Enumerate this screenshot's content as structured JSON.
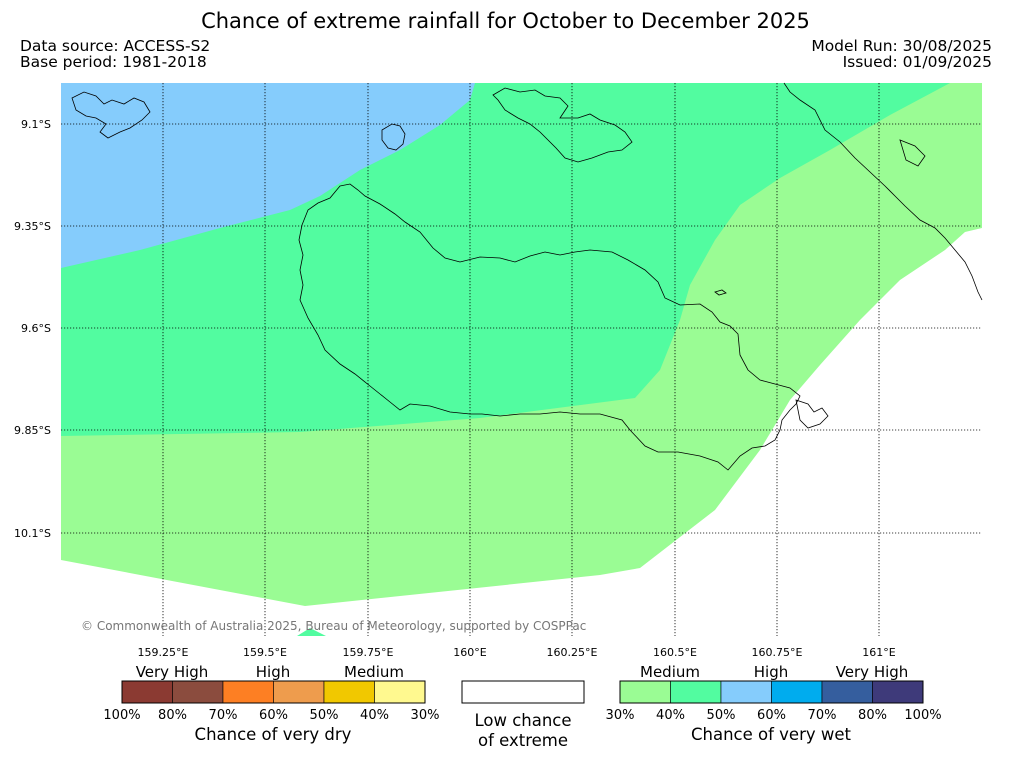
{
  "title": "Chance of extreme rainfall for October to December 2025",
  "header": {
    "data_source": "Data source: ACCESS-S2",
    "base_period": "Base period: 1981-2018",
    "model_run": "Model Run: 30/08/2025",
    "issued": "Issued: 01/09/2025"
  },
  "map": {
    "latitude_labels": [
      "9.1°S",
      "9.35°S",
      "9.6°S",
      "9.85°S",
      "10.1°S"
    ],
    "longitude_labels": [
      "159.25°E",
      "159.5°E",
      "159.75°E",
      "160°E",
      "160.25°E",
      "160.5°E",
      "160.75°E",
      "161°E"
    ],
    "copyright": "© Commonwealth of Australia 2025, Bureau of Meteorology, supported by COSPPac",
    "region_colors": {
      "wet_medium": "#9afc94",
      "wet_40_50": "#52fca0",
      "wet_high": "#85ccfc",
      "low": "#ffffff"
    }
  },
  "legend_dry": {
    "headings": [
      "Very High",
      "High",
      "Medium"
    ],
    "colors": [
      "#8b3a32",
      "#8b4c3e",
      "#fd7f23",
      "#ee9c4d",
      "#f1c800",
      "#fff98f"
    ],
    "ticks": [
      "100%",
      "80%",
      "70%",
      "60%",
      "50%",
      "40%",
      "30%"
    ],
    "title": "Chance of very dry"
  },
  "legend_low": {
    "title_line1": "Low chance",
    "title_line2": "of extreme",
    "color": "#ffffff"
  },
  "legend_wet": {
    "headings": [
      "Medium",
      "High",
      "Very High"
    ],
    "colors": [
      "#9afc94",
      "#52fca0",
      "#85ccfc",
      "#00acee",
      "#355e9e",
      "#3e3a7a"
    ],
    "ticks": [
      "30%",
      "40%",
      "50%",
      "60%",
      "70%",
      "80%",
      "100%"
    ],
    "title": "Chance of very wet"
  }
}
